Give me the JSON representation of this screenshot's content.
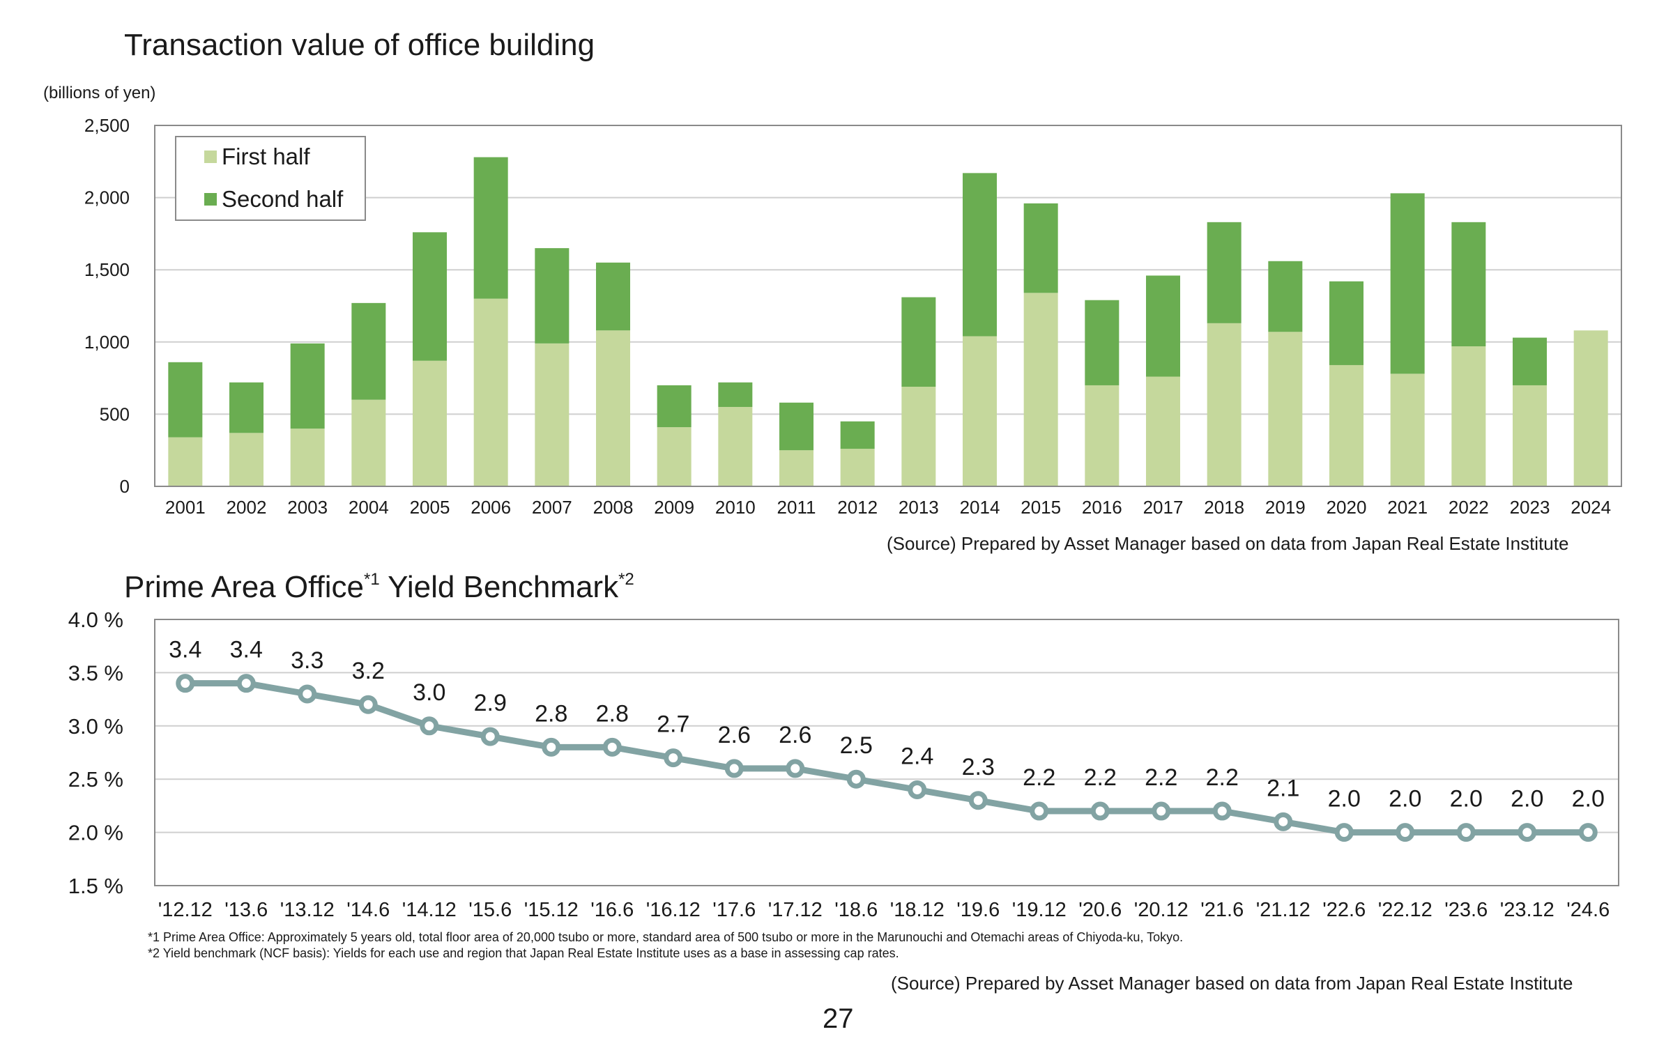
{
  "chart1": {
    "title": "Transaction value of office building",
    "unit_label": "(billions of yen)",
    "source": "(Source) Prepared by Asset Manager based on data from Japan Real Estate Institute"
  },
  "chart2": {
    "title_main": "Prime Area Office",
    "title_sup1": "*1",
    "title_rest": " Yield Benchmark",
    "title_sup2": "*2",
    "note1": "*1 Prime Area Office: Approximately 5 years old, total floor area of 20,000 tsubo or more, standard area of 500 tsubo or more in the Marunouchi and Otemachi areas of Chiyoda-ku, Tokyo.",
    "note2": "*2 Yield benchmark (NCF basis): Yields for each use and region that Japan Real Estate Institute uses as a base in assessing cap rates.",
    "source": "(Source) Prepared by Asset Manager based on data from Japan Real Estate Institute"
  },
  "page_number": "27",
  "chart_data": [
    {
      "type": "bar",
      "stacked": true,
      "title": "Transaction value of office building",
      "ylabel": "(billions of yen)",
      "ylim": [
        0,
        2500
      ],
      "yticks": [
        "0",
        "500",
        "1,000",
        "1,500",
        "2,000",
        "2,500"
      ],
      "ytick_values": [
        0,
        500,
        1000,
        1500,
        2000,
        2500
      ],
      "grid": true,
      "legend_position": "top-left",
      "categories": [
        "2001",
        "2002",
        "2003",
        "2004",
        "2005",
        "2006",
        "2007",
        "2008",
        "2009",
        "2010",
        "2011",
        "2012",
        "2013",
        "2014",
        "2015",
        "2016",
        "2017",
        "2018",
        "2019",
        "2020",
        "2021",
        "2022",
        "2023",
        "2024"
      ],
      "series": [
        {
          "name": "First half",
          "color": "#c5d89c",
          "values": [
            340,
            370,
            400,
            600,
            870,
            1300,
            990,
            1080,
            410,
            550,
            250,
            260,
            690,
            1040,
            1340,
            700,
            760,
            1130,
            1070,
            840,
            780,
            970,
            700,
            1080
          ]
        },
        {
          "name": "Second half",
          "color": "#6aad51",
          "values": [
            520,
            350,
            590,
            670,
            890,
            980,
            660,
            470,
            290,
            170,
            330,
            190,
            620,
            1130,
            620,
            590,
            700,
            700,
            490,
            580,
            1250,
            860,
            330,
            0
          ]
        }
      ]
    },
    {
      "type": "line",
      "title": "Prime Area Office Yield Benchmark",
      "ylim": [
        1.5,
        4.0
      ],
      "yticks": [
        "1.5 %",
        "2.0 %",
        "2.5 %",
        "3.0 %",
        "3.5 %",
        "4.0 %"
      ],
      "ytick_values": [
        1.5,
        2.0,
        2.5,
        3.0,
        3.5,
        4.0
      ],
      "grid": true,
      "x": [
        "'12.12",
        "'13.6",
        "'13.12",
        "'14.6",
        "'14.12",
        "'15.6",
        "'15.12",
        "'16.6",
        "'16.12",
        "'17.6",
        "'17.12",
        "'18.6",
        "'18.12",
        "'19.6",
        "'19.12",
        "'20.6",
        "'20.12",
        "'21.6",
        "'21.12",
        "'22.6",
        "'22.12",
        "'23.6",
        "'23.12",
        "'24.6"
      ],
      "series": [
        {
          "color": "#82a3a3",
          "values": [
            3.4,
            3.4,
            3.3,
            3.2,
            3.0,
            2.9,
            2.8,
            2.8,
            2.7,
            2.6,
            2.6,
            2.5,
            2.4,
            2.3,
            2.2,
            2.2,
            2.2,
            2.2,
            2.1,
            2.0,
            2.0,
            2.0,
            2.0,
            2.0
          ],
          "labels": [
            "3.4",
            "3.4",
            "3.3",
            "3.2",
            "3.0",
            "2.9",
            "2.8",
            "2.8",
            "2.7",
            "2.6",
            "2.6",
            "2.5",
            "2.4",
            "2.3",
            "2.2",
            "2.2",
            "2.2",
            "2.2",
            "2.1",
            "2.0",
            "2.0",
            "2.0",
            "2.0",
            "2.0"
          ]
        }
      ]
    }
  ]
}
